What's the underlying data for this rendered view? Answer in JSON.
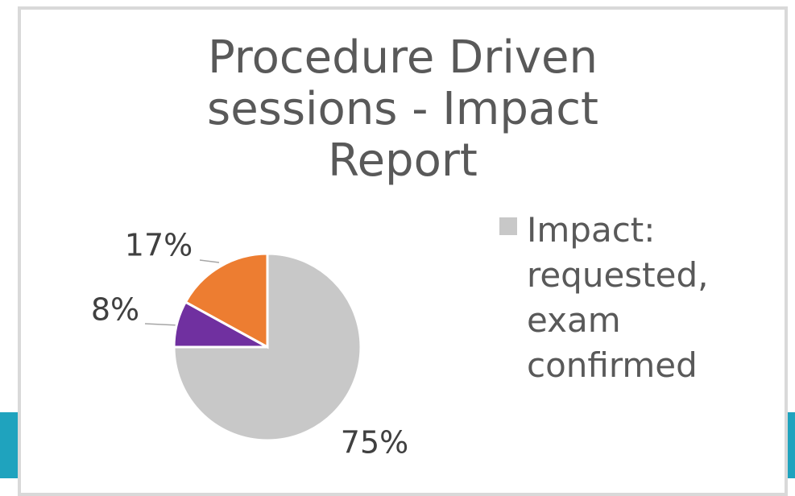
{
  "chart_data": {
    "type": "pie",
    "title": "Procedure Driven sessions - Impact Report",
    "categories": [
      "Impact: requested, exam confirmed",
      null,
      null
    ],
    "values": [
      75,
      8,
      17
    ],
    "value_labels": [
      "75%",
      "8%",
      "17%"
    ],
    "colors": [
      "#c8c8c8",
      "#7030a0",
      "#ed7d31"
    ],
    "legend": "right"
  }
}
